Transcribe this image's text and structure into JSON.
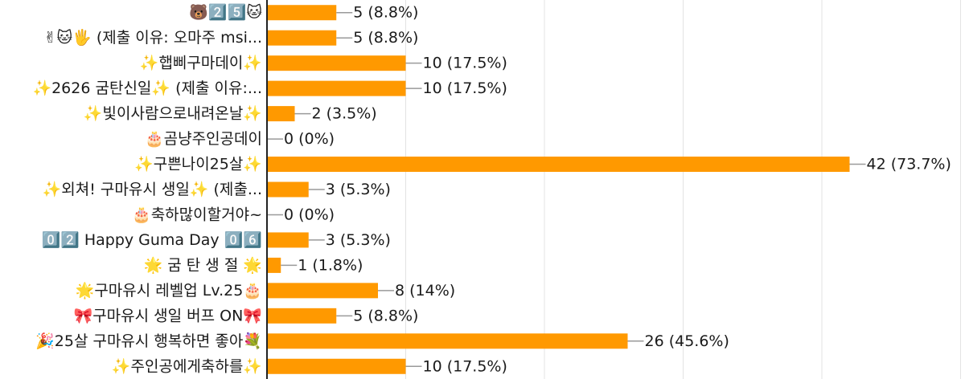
{
  "chart_data": {
    "type": "bar",
    "orientation": "horizontal",
    "categories": [
      "🐻2️⃣5️⃣🐱",
      "✌🐱🖐 (제출 이유: 오마주 msi...",
      "✨햅삐구마데이✨",
      "✨2626 굼탄신일✨ (제출 이유:...",
      "✨빛이사람으로내려온날✨",
      "🎂곰냥주인공데이",
      "✨구쁜나이25살✨",
      "✨외쳐! 구마유시 생일✨ (제출...",
      "🎂축하많이할거야~",
      "0️⃣2️⃣ Happy Guma Day 0️⃣6️⃣",
      "🌟 굼 탄 생 절 🌟",
      "🌟구마유시 레벨업 Lv.25🎂",
      "🎀구마유시 생일 버프 ON🎀",
      "🎉25살 구마유시 행복하면 좋아💐",
      "✨주인공에게축하를✨"
    ],
    "values": [
      5,
      5,
      10,
      10,
      2,
      0,
      42,
      3,
      0,
      3,
      1,
      8,
      5,
      26,
      10
    ],
    "value_labels": [
      "5 (8.8%)",
      "5 (8.8%)",
      "10 (17.5%)",
      "10 (17.5%)",
      "2 (3.5%)",
      "0 (0%)",
      "42 (73.7%)",
      "3 (5.3%)",
      "0 (0%)",
      "3 (5.3%)",
      "1 (1.8%)",
      "8 (14%)",
      "5 (8.8%)",
      "26 (45.6%)",
      "10 (17.5%)"
    ],
    "xlim": [
      0,
      50
    ],
    "grid": true,
    "colors": {
      "bar": "#ff9900",
      "grid": "#e3e3e3",
      "axis": "#222222",
      "leader": "#9a9a9a"
    }
  }
}
